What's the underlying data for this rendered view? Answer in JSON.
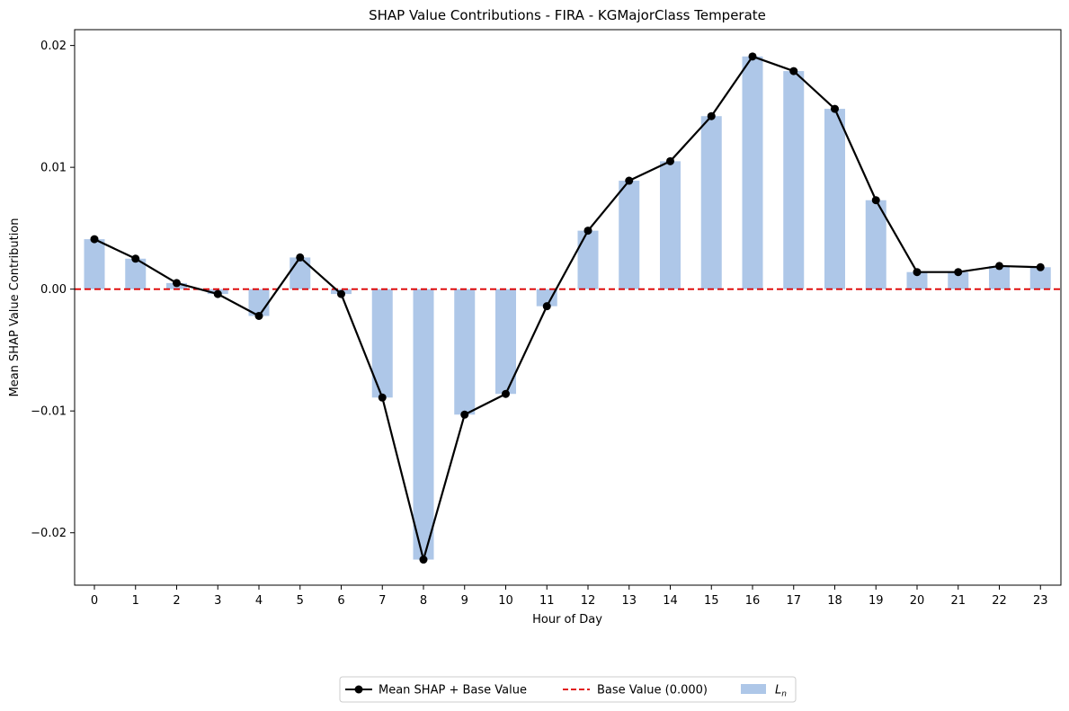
{
  "chart_data": {
    "type": "bar",
    "title": "SHAP Value Contributions - FIRA - KGMajorClass Temperate",
    "xlabel": "Hour of Day",
    "ylabel": "Mean SHAP Value Contribution",
    "ylim": [
      -0.0243,
      0.0213
    ],
    "yticks": [
      -0.02,
      -0.01,
      0.0,
      0.01,
      0.02
    ],
    "ytick_labels": [
      "−0.02",
      "−0.01",
      "0.00",
      "0.01",
      "0.02"
    ],
    "categories": [
      "0",
      "1",
      "2",
      "3",
      "4",
      "5",
      "6",
      "7",
      "8",
      "9",
      "10",
      "11",
      "12",
      "13",
      "14",
      "15",
      "16",
      "17",
      "18",
      "19",
      "20",
      "21",
      "22",
      "23"
    ],
    "series": [
      {
        "name": "Mean SHAP + Base Value",
        "kind": "line",
        "color": "#000000",
        "values": [
          0.0041,
          0.0025,
          0.0005,
          -0.0004,
          -0.0022,
          0.0026,
          -0.0004,
          -0.0089,
          -0.0222,
          -0.0103,
          -0.0086,
          -0.0014,
          0.0048,
          0.0089,
          0.0105,
          0.0142,
          0.0191,
          0.0179,
          0.0148,
          0.0073,
          0.0014,
          0.0014,
          0.0019,
          0.0018
        ]
      },
      {
        "name": "L_n",
        "kind": "bar",
        "color": "#aec7e8",
        "values": [
          0.0041,
          0.0025,
          0.0005,
          -0.0004,
          -0.0022,
          0.0026,
          -0.0004,
          -0.0089,
          -0.0222,
          -0.0103,
          -0.0086,
          -0.0014,
          0.0048,
          0.0089,
          0.0105,
          0.0142,
          0.0191,
          0.0179,
          0.0148,
          0.0073,
          0.0014,
          0.0014,
          0.0019,
          0.0018
        ]
      }
    ],
    "reference_line": {
      "name": "Base Value (0.000)",
      "value": 0.0,
      "color": "#dd0000",
      "style": "dashed"
    },
    "legend": {
      "placement": "bottom-center",
      "entries": [
        {
          "label": "Mean SHAP + Base Value",
          "kind": "line-marker"
        },
        {
          "label": "Base Value (0.000)",
          "kind": "dashed"
        },
        {
          "label": "L",
          "subscript": "n",
          "kind": "patch"
        }
      ]
    },
    "grid": false
  }
}
